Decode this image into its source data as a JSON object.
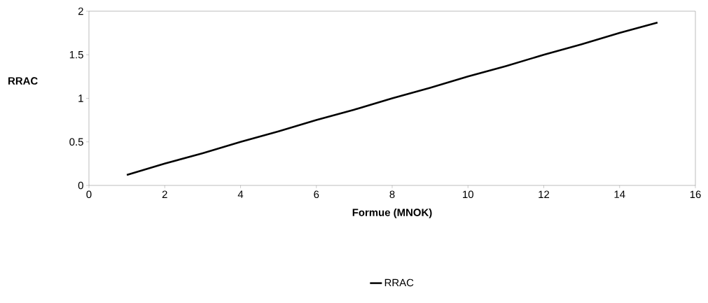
{
  "chart_data": {
    "type": "line",
    "xlabel": "Formue (MNOK)",
    "ylabel": "RRAC",
    "x": [
      1,
      2,
      3,
      4,
      5,
      6,
      7,
      8,
      9,
      10,
      11,
      12,
      13,
      14,
      15
    ],
    "series": [
      {
        "name": "RRAC",
        "color": "#000000",
        "values": [
          0.12,
          0.25,
          0.37,
          0.5,
          0.62,
          0.75,
          0.87,
          1.0,
          1.12,
          1.25,
          1.37,
          1.5,
          1.62,
          1.75,
          1.87
        ]
      }
    ],
    "xlim": [
      0,
      16
    ],
    "xticks": [
      0,
      2,
      4,
      6,
      8,
      10,
      12,
      14,
      16
    ],
    "ylim": [
      0,
      2
    ],
    "yticks": [
      0,
      0.5,
      1,
      1.5,
      2
    ],
    "legend": "bottom",
    "marker": "none",
    "line_style": "solid"
  }
}
